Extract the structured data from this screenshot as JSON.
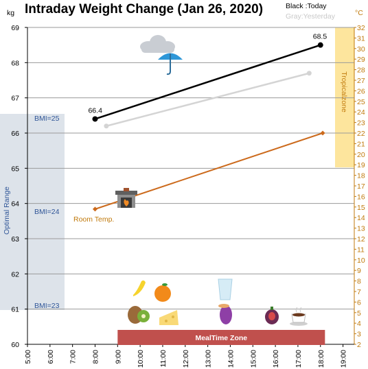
{
  "chart_data": {
    "type": "line",
    "title": "Intraday Weight Change (Jan 26, 2020)",
    "y_left_unit": "kg",
    "y_right_unit": "°C",
    "y_left_range": [
      60,
      69
    ],
    "y_right_range": [
      2,
      32
    ],
    "x_range_hours": [
      5,
      19.5
    ],
    "x_ticks": [
      "5:00",
      "6:00",
      "7:00",
      "8:00",
      "9:00",
      "10:00",
      "11:00",
      "12:00",
      "13:00",
      "14:00",
      "15:00",
      "16:00",
      "17:00",
      "18:00",
      "19:00"
    ],
    "y_left_ticks": [
      "60",
      "61",
      "62",
      "63",
      "64",
      "65",
      "66",
      "67",
      "68",
      "69"
    ],
    "y_right_ticks": [
      "2",
      "3",
      "4",
      "5",
      "6",
      "7",
      "8",
      "9",
      "10",
      "11",
      "12",
      "13",
      "14",
      "15",
      "16",
      "17",
      "18",
      "19",
      "20",
      "21",
      "22",
      "23",
      "24",
      "25",
      "26",
      "27",
      "28",
      "29",
      "30",
      "31",
      "32"
    ],
    "grid": "horizontal",
    "legend": {
      "today": "Black :Today",
      "yesterday": "Gray:Yesterday"
    },
    "series": [
      {
        "name": "Today",
        "axis": "left",
        "color": "#000000",
        "x": [
          8.0,
          18.0
        ],
        "y": [
          66.4,
          68.5
        ],
        "labels": [
          "66.4",
          "68.5"
        ]
      },
      {
        "name": "Yesterday",
        "axis": "left",
        "color": "#d4d4d4",
        "x": [
          8.5,
          17.5
        ],
        "y": [
          66.2,
          67.7
        ]
      },
      {
        "name": "Room Temp.",
        "axis": "right",
        "color": "#cc6a1c",
        "x": [
          8.0,
          18.1
        ],
        "y": [
          14.8,
          22.0
        ]
      }
    ],
    "annotations": {
      "optimal_range": "Optimal Range",
      "bmi_25": "BMI=25",
      "bmi_24": "BMI=24",
      "bmi_23": "BMI=23",
      "tropical_zone": "Tropicalzone",
      "tropical_range_c": [
        20,
        32
      ],
      "meal_zone": "MealTime Zone",
      "meal_zone_hours": [
        9.0,
        18.2
      ],
      "room_temp_label": "Room Temp."
    },
    "icons": [
      "cloud-icon",
      "umbrella-icon",
      "fireplace-icon",
      "banana-icon",
      "orange-icon",
      "kiwi-icon",
      "cheese-icon",
      "water-glass-icon",
      "sweet-potato-icon",
      "fig-icon",
      "coffee-icon"
    ]
  }
}
